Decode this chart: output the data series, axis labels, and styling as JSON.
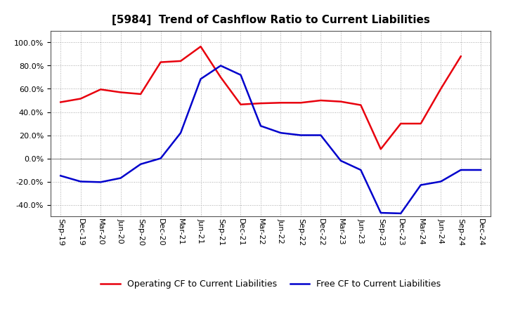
{
  "title": "[5984]  Trend of Cashflow Ratio to Current Liabilities",
  "x_labels": [
    "Sep-19",
    "Dec-19",
    "Mar-20",
    "Jun-20",
    "Sep-20",
    "Dec-20",
    "Mar-21",
    "Jun-21",
    "Sep-21",
    "Dec-21",
    "Mar-22",
    "Jun-22",
    "Sep-22",
    "Dec-22",
    "Mar-23",
    "Jun-23",
    "Sep-23",
    "Dec-23",
    "Mar-24",
    "Jun-24",
    "Sep-24",
    "Dec-24"
  ],
  "operating_cf": [
    48.5,
    51.5,
    59.5,
    57.0,
    55.5,
    83.0,
    84.0,
    96.5,
    70.0,
    46.5,
    47.5,
    48.0,
    48.0,
    50.0,
    49.0,
    46.0,
    8.0,
    30.0,
    30.0,
    60.0,
    88.0,
    null
  ],
  "free_cf": [
    -15.0,
    -20.0,
    -20.5,
    -17.0,
    -5.0,
    0.0,
    22.0,
    68.5,
    80.0,
    72.0,
    28.0,
    22.0,
    20.0,
    20.0,
    -2.0,
    -10.0,
    -47.0,
    -47.5,
    -23.0,
    -20.0,
    -10.0,
    -10.0
  ],
  "operating_color": "#e8000d",
  "free_color": "#0000cc",
  "ylim": [
    -50,
    110
  ],
  "yticks": [
    -40.0,
    -20.0,
    0.0,
    20.0,
    40.0,
    60.0,
    80.0,
    100.0
  ],
  "legend_labels": [
    "Operating CF to Current Liabilities",
    "Free CF to Current Liabilities"
  ],
  "background_color": "#ffffff",
  "grid_color": "#aaaaaa",
  "title_fontsize": 11,
  "tick_fontsize": 8,
  "legend_fontsize": 9
}
